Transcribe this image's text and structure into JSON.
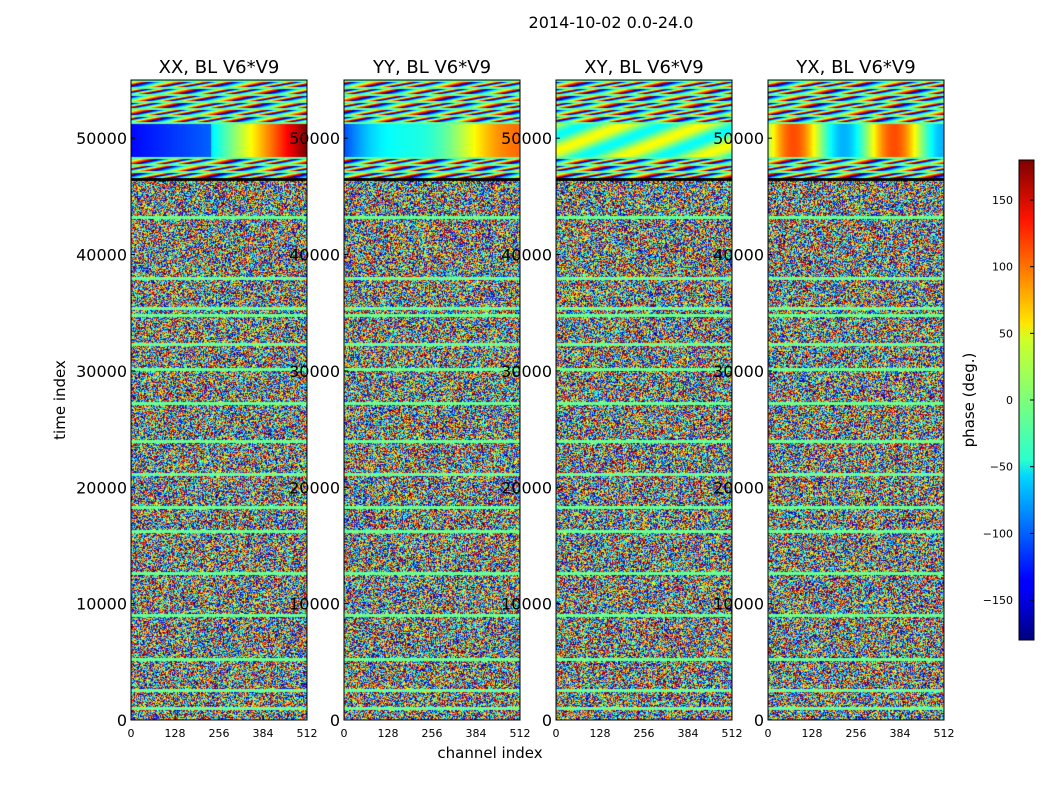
{
  "title": "2014-10-02 0.0-24.0",
  "chart_data": {
    "type": "heatmap",
    "colormap": "jet",
    "xlabel": "channel index",
    "ylabel": "time index",
    "xlim": [
      0,
      512
    ],
    "ylim": [
      0,
      55000
    ],
    "xticks": [
      "0",
      "128",
      "256",
      "384",
      "512"
    ],
    "yticks": [
      "0",
      "10000",
      "20000",
      "30000",
      "40000",
      "50000"
    ],
    "ytick_values": [
      0,
      10000,
      20000,
      30000,
      40000,
      50000
    ],
    "noise_region_time": [
      0,
      46500
    ],
    "coherent_region_time": [
      46500,
      55000
    ],
    "strong_band_time": [
      48500,
      51200
    ],
    "gap_line_times": [
      1000,
      2600,
      5200,
      9000,
      12600,
      16200,
      18300,
      21100,
      24000,
      27200,
      30200,
      32300,
      34800,
      35400,
      38000,
      43200
    ],
    "panels": [
      {
        "title": "XX, BL V6*V9"
      },
      {
        "title": "YY, BL V6*V9"
      },
      {
        "title": "XY, BL V6*V9"
      },
      {
        "title": "YX, BL V6*V9"
      }
    ],
    "colorbar": {
      "label": "phase (deg.)",
      "range": [
        -180,
        180
      ],
      "ticks": [
        "150",
        "100",
        "50",
        "0",
        "−50",
        "−100",
        "−150"
      ],
      "tick_values": [
        150,
        100,
        50,
        0,
        -50,
        -100,
        -150
      ]
    }
  }
}
